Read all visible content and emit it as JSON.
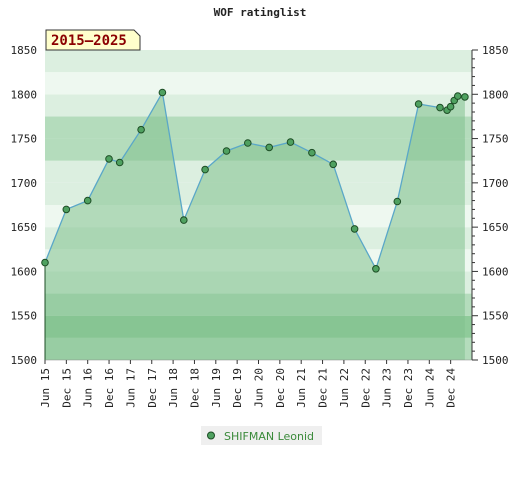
{
  "chart_data": {
    "type": "area",
    "title": "WOF ratinglist",
    "range_label": "2015–2025",
    "ylim": [
      1500,
      1850
    ],
    "y_ticks": [
      1500,
      1550,
      1600,
      1650,
      1700,
      1750,
      1800,
      1850
    ],
    "x_range": [
      "2015-06",
      "2025-06"
    ],
    "x_ticks": [
      "Jun 15",
      "Dec 15",
      "Jun 16",
      "Dec 16",
      "Jun 17",
      "Dec 17",
      "Jun 18",
      "Dec 18",
      "Jun 19",
      "Dec 19",
      "Jun 20",
      "Dec 20",
      "Jun 21",
      "Dec 21",
      "Jun 22",
      "Dec 22",
      "Jun 23",
      "Dec 23",
      "Jun 24",
      "Dec 24"
    ],
    "series": [
      {
        "name": "SHIFMAN Leonid",
        "points": [
          {
            "x": "2015-06",
            "y": 1610
          },
          {
            "x": "2015-12",
            "y": 1670
          },
          {
            "x": "2016-06",
            "y": 1680
          },
          {
            "x": "2016-12",
            "y": 1727
          },
          {
            "x": "2017-03",
            "y": 1723
          },
          {
            "x": "2017-09",
            "y": 1760
          },
          {
            "x": "2018-03",
            "y": 1802
          },
          {
            "x": "2018-09",
            "y": 1658
          },
          {
            "x": "2019-03",
            "y": 1715
          },
          {
            "x": "2019-09",
            "y": 1736
          },
          {
            "x": "2020-03",
            "y": 1745
          },
          {
            "x": "2020-09",
            "y": 1740
          },
          {
            "x": "2021-03",
            "y": 1746
          },
          {
            "x": "2021-09",
            "y": 1734
          },
          {
            "x": "2022-03",
            "y": 1721
          },
          {
            "x": "2022-09",
            "y": 1648
          },
          {
            "x": "2023-03",
            "y": 1603
          },
          {
            "x": "2023-09",
            "y": 1679
          },
          {
            "x": "2024-03",
            "y": 1789
          },
          {
            "x": "2024-09",
            "y": 1785
          },
          {
            "x": "2024-11",
            "y": 1782
          },
          {
            "x": "2024-12",
            "y": 1786
          },
          {
            "x": "2025-01",
            "y": 1793
          },
          {
            "x": "2025-02",
            "y": 1798
          },
          {
            "x": "2025-04",
            "y": 1797
          }
        ]
      }
    ],
    "grid": true,
    "legend_position": "bottom-center",
    "colors": {
      "line": "#5aa7c8",
      "area_fill": "#82c18e",
      "marker_fill": "#4fa160",
      "marker_stroke": "#1d4d25",
      "band_light": "#dcefe0",
      "band_pale": "#eef8f0",
      "band_mid": "#b4dcbc",
      "band_dark": "#8fcb9a",
      "range_box": "#ffffcc"
    }
  }
}
